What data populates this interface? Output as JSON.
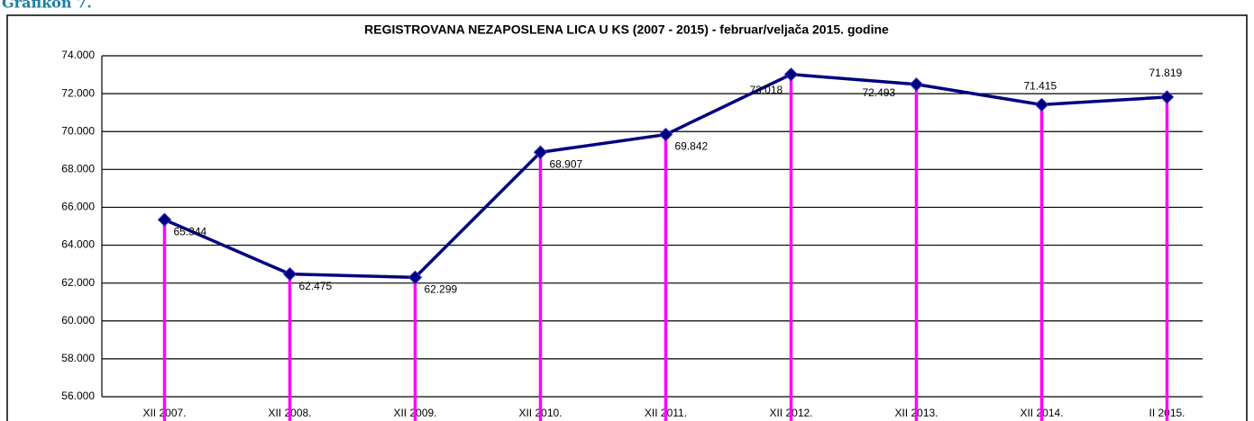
{
  "heading": "Grafikon 7.",
  "chart_data": {
    "type": "line",
    "title": "REGISTROVANA NEZAPOSLENA LICA U KS  (2007 - 2015) - februar/veljača 2015. godine",
    "categories": [
      "XII 2007.",
      "XII 2008.",
      "XII 2009.",
      "XII 2010.",
      "XII 2011.",
      "XII  2012.",
      "XII 2013.",
      "XII 2014.",
      "II 2015."
    ],
    "series": [
      {
        "name": "Registrovana nezaposlena lica",
        "color": "#000080",
        "drop_line_color": "#ff00ff",
        "values": [
          65344,
          62475,
          62299,
          68907,
          69842,
          73018,
          72493,
          71415,
          71819
        ],
        "value_labels": [
          "65.344",
          "62.475",
          "62.299",
          "68.907",
          "69.842",
          "73.018",
          "72.493",
          "71.415",
          "71.819"
        ]
      }
    ],
    "ylim": [
      56000,
      74000
    ],
    "yticks": [
      {
        "value": 56000,
        "label": "56.000"
      },
      {
        "value": 58000,
        "label": "58.000"
      },
      {
        "value": 60000,
        "label": "60.000"
      },
      {
        "value": 62000,
        "label": "62.000"
      },
      {
        "value": 64000,
        "label": "64.000"
      },
      {
        "value": 66000,
        "label": "66.000"
      },
      {
        "value": 68000,
        "label": "68.000"
      },
      {
        "value": 70000,
        "label": "70.000"
      },
      {
        "value": 72000,
        "label": "72.000"
      },
      {
        "value": 74000,
        "label": "74.000"
      }
    ],
    "grid": true
  }
}
